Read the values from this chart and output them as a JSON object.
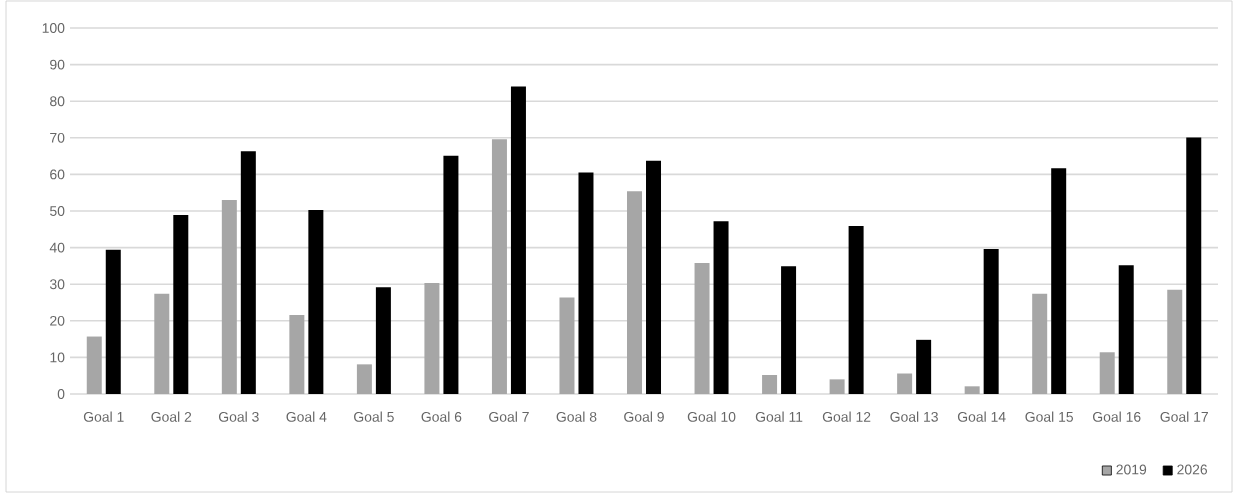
{
  "chart_data": {
    "type": "bar",
    "categories": [
      "Goal 1",
      "Goal 2",
      "Goal 3",
      "Goal 4",
      "Goal 5",
      "Goal 6",
      "Goal 7",
      "Goal 8",
      "Goal 9",
      "Goal 10",
      "Goal 11",
      "Goal 12",
      "Goal 13",
      "Goal 14",
      "Goal 15",
      "Goal 16",
      "Goal 17"
    ],
    "series": [
      {
        "name": "2019",
        "color": "#a6a6a6",
        "values": [
          15.7,
          27.4,
          53.0,
          21.6,
          8.1,
          30.3,
          69.6,
          26.4,
          55.4,
          35.8,
          5.2,
          4.0,
          5.6,
          2.1,
          27.4,
          11.4,
          28.5
        ]
      },
      {
        "name": "2026",
        "color": "#000000",
        "values": [
          39.4,
          48.9,
          66.3,
          50.3,
          29.2,
          65.1,
          84.0,
          60.5,
          63.7,
          47.2,
          34.9,
          45.9,
          14.8,
          39.6,
          61.7,
          35.2,
          70.1
        ]
      }
    ],
    "ylim": [
      0,
      100
    ],
    "yticks": [
      0,
      10,
      20,
      30,
      40,
      50,
      60,
      70,
      80,
      90,
      100
    ],
    "grid": "y",
    "legend": "bottom right"
  }
}
